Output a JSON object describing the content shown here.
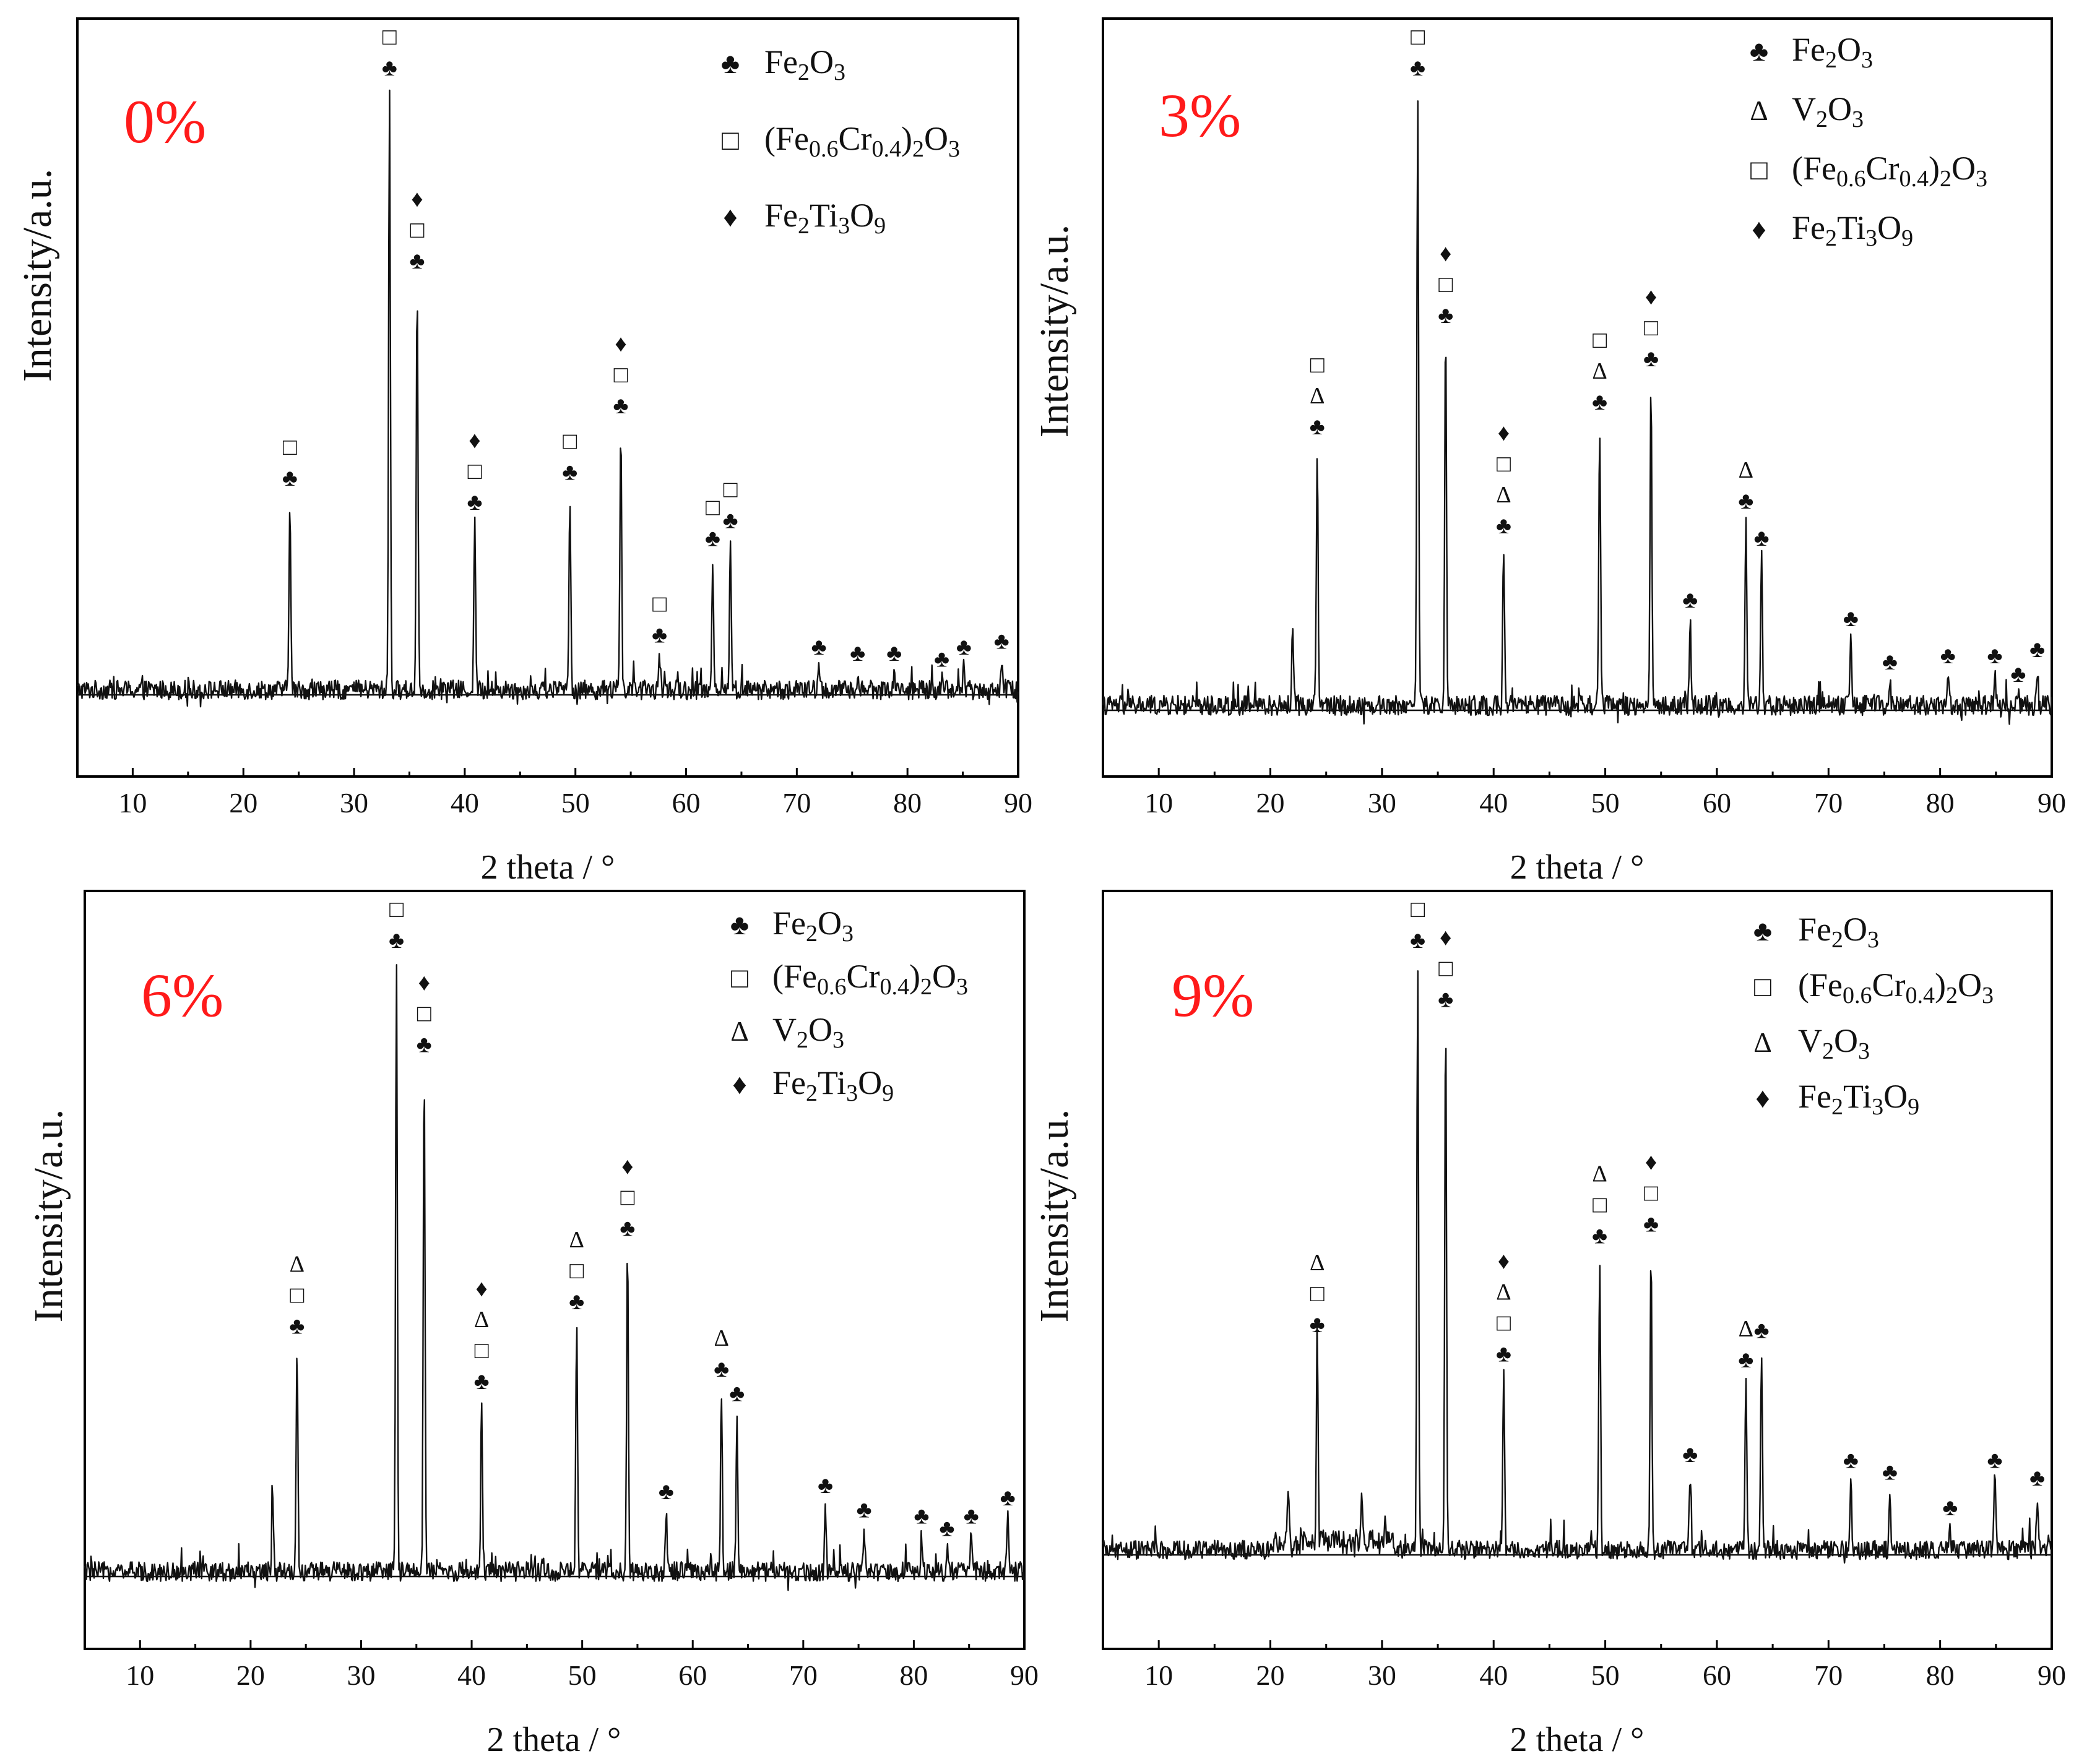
{
  "chart_data": [
    {
      "type": "line",
      "panel_label": "0%",
      "xlabel": "2 theta / °",
      "ylabel": "Intensity/a.u.",
      "xlim": [
        5,
        90
      ],
      "xticks": [
        10,
        20,
        30,
        40,
        50,
        60,
        70,
        80,
        90
      ],
      "ylim": [
        -15,
        118
      ],
      "legend": [
        {
          "symbol": "♣",
          "formula": [
            {
              "t": "Fe"
            },
            {
              "t": "2",
              "sub": true
            },
            {
              "t": "O"
            },
            {
              "t": "3",
              "sub": true
            }
          ]
        },
        {
          "symbol": "□",
          "formula": [
            {
              "t": "(Fe"
            },
            {
              "t": "0.6",
              "sub": true
            },
            {
              "t": "Cr"
            },
            {
              "t": "0.4",
              "sub": true
            },
            {
              "t": ")"
            },
            {
              "t": "2",
              "sub": true
            },
            {
              "t": "O"
            },
            {
              "t": "3",
              "sub": true
            }
          ]
        },
        {
          "symbol": "♦",
          "formula": [
            {
              "t": "Fe"
            },
            {
              "t": "2",
              "sub": true
            },
            {
              "t": "Ti"
            },
            {
              "t": "3",
              "sub": true
            },
            {
              "t": "O"
            },
            {
              "t": "9",
              "sub": true
            }
          ]
        }
      ],
      "peaks": [
        {
          "x": 24.2,
          "y": 32,
          "markers": [
            "♣",
            "□"
          ]
        },
        {
          "x": 33.2,
          "y": 100,
          "markers": [
            "♣",
            "□"
          ]
        },
        {
          "x": 35.7,
          "y": 68,
          "markers": [
            "♣",
            "□",
            "♦"
          ]
        },
        {
          "x": 40.9,
          "y": 28,
          "markers": [
            "♣",
            "□",
            "♦"
          ]
        },
        {
          "x": 49.5,
          "y": 33,
          "markers": [
            "♣",
            "□"
          ]
        },
        {
          "x": 54.1,
          "y": 44,
          "markers": [
            "♣",
            "□",
            "♦"
          ]
        },
        {
          "x": 57.6,
          "y": 6,
          "markers": [
            "♣",
            "□"
          ]
        },
        {
          "x": 62.4,
          "y": 22,
          "markers": [
            "♣",
            "□"
          ]
        },
        {
          "x": 64.0,
          "y": 25,
          "markers": [
            "♣",
            "□"
          ]
        },
        {
          "x": 72.0,
          "y": 4,
          "markers": [
            "♣"
          ]
        },
        {
          "x": 75.5,
          "y": 3,
          "markers": [
            "♣"
          ]
        },
        {
          "x": 78.8,
          "y": 3,
          "markers": [
            "♣"
          ]
        },
        {
          "x": 83.1,
          "y": 2,
          "markers": [
            "♣"
          ]
        },
        {
          "x": 85.1,
          "y": 4,
          "markers": [
            "♣"
          ]
        },
        {
          "x": 88.5,
          "y": 5,
          "markers": [
            "♣"
          ]
        }
      ],
      "unlabeled_peaks": []
    },
    {
      "type": "line",
      "panel_label": "3%",
      "xlabel": "2 theta / °",
      "ylabel": "Intensity/a.u.",
      "xlim": [
        5,
        90
      ],
      "xticks": [
        10,
        20,
        30,
        40,
        50,
        60,
        70,
        80,
        90
      ],
      "ylim": [
        -15,
        118
      ],
      "legend": [
        {
          "symbol": "♣",
          "formula": [
            {
              "t": "Fe"
            },
            {
              "t": "2",
              "sub": true
            },
            {
              "t": "O"
            },
            {
              "t": "3",
              "sub": true
            }
          ]
        },
        {
          "symbol": "Δ",
          "formula": [
            {
              "t": "V"
            },
            {
              "t": "2",
              "sub": true
            },
            {
              "t": "O"
            },
            {
              "t": "3",
              "sub": true
            }
          ]
        },
        {
          "symbol": "□",
          "formula": [
            {
              "t": "(Fe"
            },
            {
              "t": "0.6",
              "sub": true
            },
            {
              "t": "Cr"
            },
            {
              "t": "0.4",
              "sub": true
            },
            {
              "t": ")"
            },
            {
              "t": "2",
              "sub": true
            },
            {
              "t": "O"
            },
            {
              "t": "3",
              "sub": true
            }
          ]
        },
        {
          "symbol": "♦",
          "formula": [
            {
              "t": "Fe"
            },
            {
              "t": "2",
              "sub": true
            },
            {
              "t": "Ti"
            },
            {
              "t": "3",
              "sub": true
            },
            {
              "t": "O"
            },
            {
              "t": "9",
              "sub": true
            }
          ]
        }
      ],
      "peaks": [
        {
          "x": 24.2,
          "y": 42,
          "markers": [
            "♣",
            "Δ",
            "□"
          ]
        },
        {
          "x": 33.2,
          "y": 100,
          "markers": [
            "♣",
            "□"
          ]
        },
        {
          "x": 35.7,
          "y": 60,
          "markers": [
            "♣",
            "□",
            "♦"
          ]
        },
        {
          "x": 40.9,
          "y": 26,
          "markers": [
            "♣",
            "Δ",
            "□",
            "♦"
          ]
        },
        {
          "x": 49.5,
          "y": 46,
          "markers": [
            "♣",
            "Δ",
            "□"
          ]
        },
        {
          "x": 54.1,
          "y": 53,
          "markers": [
            "♣",
            "□",
            "♦"
          ]
        },
        {
          "x": 57.6,
          "y": 14,
          "markers": [
            "♣"
          ]
        },
        {
          "x": 62.6,
          "y": 30,
          "markers": [
            "♣",
            "Δ"
          ]
        },
        {
          "x": 64.0,
          "y": 24,
          "markers": [
            "♣"
          ]
        },
        {
          "x": 72.0,
          "y": 11,
          "markers": [
            "♣"
          ]
        },
        {
          "x": 75.5,
          "y": 4,
          "markers": [
            "♣"
          ]
        },
        {
          "x": 80.7,
          "y": 5,
          "markers": [
            "♣"
          ]
        },
        {
          "x": 84.9,
          "y": 5,
          "markers": [
            "♣"
          ]
        },
        {
          "x": 87.0,
          "y": 2,
          "markers": [
            "♣"
          ]
        },
        {
          "x": 88.7,
          "y": 6,
          "markers": [
            "♣"
          ]
        }
      ],
      "unlabeled_peaks": [
        {
          "x": 22.0,
          "y": 14
        }
      ]
    },
    {
      "type": "line",
      "panel_label": "6%",
      "xlabel": "2 theta / °",
      "ylabel": "Intensity/a.u.",
      "xlim": [
        5,
        90
      ],
      "xticks": [
        10,
        20,
        30,
        40,
        50,
        60,
        70,
        80,
        90
      ],
      "ylim": [
        -15,
        118
      ],
      "legend": [
        {
          "symbol": "♣",
          "formula": [
            {
              "t": "Fe"
            },
            {
              "t": "2",
              "sub": true
            },
            {
              "t": "O"
            },
            {
              "t": "3",
              "sub": true
            }
          ]
        },
        {
          "symbol": "□",
          "formula": [
            {
              "t": "(Fe"
            },
            {
              "t": "0.6",
              "sub": true
            },
            {
              "t": "Cr"
            },
            {
              "t": "0.4",
              "sub": true
            },
            {
              "t": ")"
            },
            {
              "t": "2",
              "sub": true
            },
            {
              "t": "O"
            },
            {
              "t": "3",
              "sub": true
            }
          ]
        },
        {
          "symbol": "Δ",
          "formula": [
            {
              "t": "V"
            },
            {
              "t": "2",
              "sub": true
            },
            {
              "t": "O"
            },
            {
              "t": "3",
              "sub": true
            }
          ]
        },
        {
          "symbol": "♦",
          "formula": [
            {
              "t": "Fe"
            },
            {
              "t": "2",
              "sub": true
            },
            {
              "t": "Ti"
            },
            {
              "t": "3",
              "sub": true
            },
            {
              "t": "O"
            },
            {
              "t": "9",
              "sub": true
            }
          ]
        }
      ],
      "peaks": [
        {
          "x": 24.2,
          "y": 37,
          "markers": [
            "♣",
            "□",
            "Δ"
          ]
        },
        {
          "x": 33.2,
          "y": 100,
          "markers": [
            "♣",
            "□"
          ]
        },
        {
          "x": 35.7,
          "y": 83,
          "markers": [
            "♣",
            "□",
            "♦"
          ]
        },
        {
          "x": 40.9,
          "y": 28,
          "markers": [
            "♣",
            "□",
            "Δ",
            "♦"
          ]
        },
        {
          "x": 49.5,
          "y": 41,
          "markers": [
            "♣",
            "□",
            "Δ"
          ]
        },
        {
          "x": 54.1,
          "y": 53,
          "markers": [
            "♣",
            "□",
            "♦"
          ]
        },
        {
          "x": 57.6,
          "y": 10,
          "markers": [
            "♣"
          ]
        },
        {
          "x": 62.6,
          "y": 30,
          "markers": [
            "♣",
            "Δ"
          ]
        },
        {
          "x": 64.0,
          "y": 26,
          "markers": [
            "♣"
          ]
        },
        {
          "x": 72.0,
          "y": 11,
          "markers": [
            "♣"
          ]
        },
        {
          "x": 75.5,
          "y": 7,
          "markers": [
            "♣"
          ]
        },
        {
          "x": 80.7,
          "y": 6,
          "markers": [
            "♣"
          ]
        },
        {
          "x": 83.0,
          "y": 4,
          "markers": [
            "♣"
          ]
        },
        {
          "x": 85.2,
          "y": 6,
          "markers": [
            "♣"
          ]
        },
        {
          "x": 88.5,
          "y": 9,
          "markers": [
            "♣"
          ]
        }
      ],
      "unlabeled_peaks": [
        {
          "x": 22.0,
          "y": 13
        }
      ]
    },
    {
      "type": "line",
      "panel_label": "9%",
      "xlabel": "2 theta / °",
      "ylabel": "Intensity/a.u.",
      "xlim": [
        5,
        90
      ],
      "xticks": [
        10,
        20,
        30,
        40,
        50,
        60,
        70,
        80,
        90
      ],
      "ylim": [
        -15,
        118
      ],
      "legend": [
        {
          "symbol": "♣",
          "formula": [
            {
              "t": "Fe"
            },
            {
              "t": "2",
              "sub": true
            },
            {
              "t": "O"
            },
            {
              "t": "3",
              "sub": true
            }
          ]
        },
        {
          "symbol": "□",
          "formula": [
            {
              "t": "(Fe"
            },
            {
              "t": "0.6",
              "sub": true
            },
            {
              "t": "Cr"
            },
            {
              "t": "0.4",
              "sub": true
            },
            {
              "t": ")"
            },
            {
              "t": "2",
              "sub": true
            },
            {
              "t": "O"
            },
            {
              "t": "3",
              "sub": true
            }
          ]
        },
        {
          "symbol": "Δ",
          "formula": [
            {
              "t": "V"
            },
            {
              "t": "2",
              "sub": true
            },
            {
              "t": "O"
            },
            {
              "t": "3",
              "sub": true
            }
          ]
        },
        {
          "symbol": "♦",
          "formula": [
            {
              "t": "Fe"
            },
            {
              "t": "2",
              "sub": true
            },
            {
              "t": "Ti"
            },
            {
              "t": "3",
              "sub": true
            },
            {
              "t": "O"
            },
            {
              "t": "9",
              "sub": true
            }
          ]
        }
      ],
      "peaks": [
        {
          "x": 24.2,
          "y": 35,
          "markers": [
            "♣",
            "□",
            "Δ"
          ]
        },
        {
          "x": 33.2,
          "y": 100,
          "markers": [
            "♣",
            "□"
          ]
        },
        {
          "x": 35.7,
          "y": 90,
          "markers": [
            "♣",
            "□",
            "♦"
          ]
        },
        {
          "x": 40.9,
          "y": 30,
          "markers": [
            "♣",
            "□",
            "Δ",
            "♦"
          ]
        },
        {
          "x": 49.5,
          "y": 50,
          "markers": [
            "♣",
            "□",
            "Δ"
          ]
        },
        {
          "x": 54.1,
          "y": 52,
          "markers": [
            "♣",
            "□",
            "♦"
          ]
        },
        {
          "x": 57.6,
          "y": 13,
          "markers": [
            "♣"
          ]
        },
        {
          "x": 62.6,
          "y": 29,
          "markers": [
            "♣",
            "Δ"
          ]
        },
        {
          "x": 64.0,
          "y": 34,
          "markers": [
            "♣"
          ]
        },
        {
          "x": 72.0,
          "y": 12,
          "markers": [
            "♣"
          ]
        },
        {
          "x": 75.5,
          "y": 10,
          "markers": [
            "♣"
          ]
        },
        {
          "x": 80.9,
          "y": 4,
          "markers": [
            "♣"
          ]
        },
        {
          "x": 84.9,
          "y": 12,
          "markers": [
            "♣"
          ]
        },
        {
          "x": 88.7,
          "y": 9,
          "markers": [
            "♣"
          ]
        }
      ],
      "unlabeled_peaks": [
        {
          "x": 21.6,
          "y": 10
        },
        {
          "x": 28.2,
          "y": 8
        }
      ]
    }
  ]
}
